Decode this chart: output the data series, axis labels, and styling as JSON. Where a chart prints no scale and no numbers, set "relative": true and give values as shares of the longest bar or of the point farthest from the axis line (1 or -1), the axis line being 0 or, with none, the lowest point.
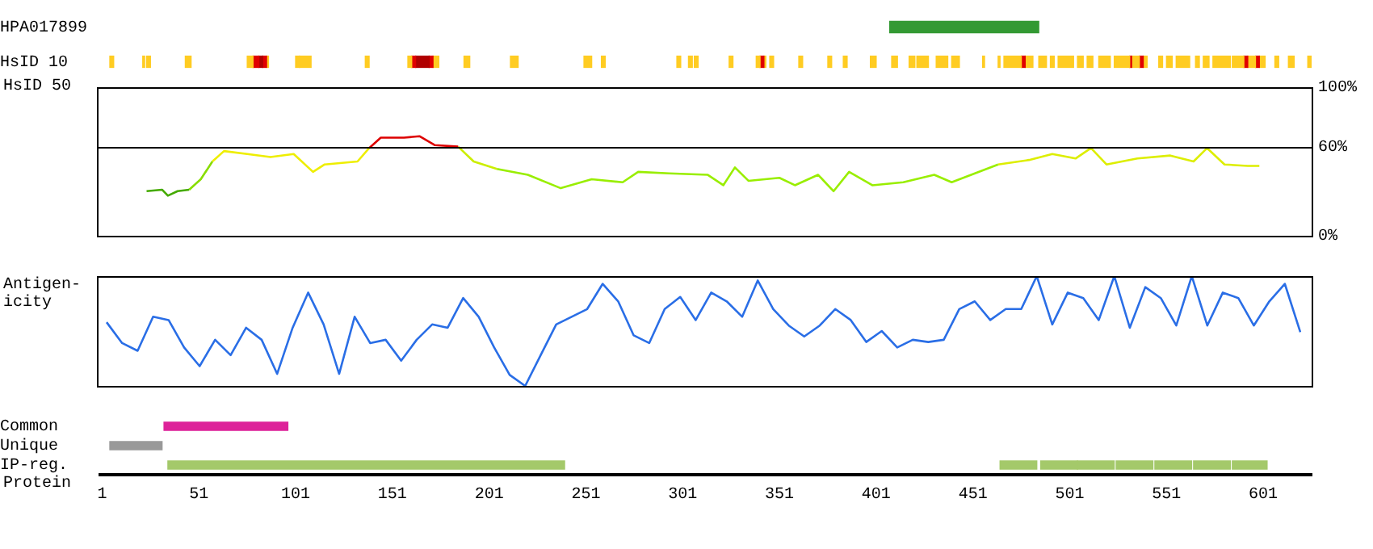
{
  "chart_data": [
    {
      "type": "bar",
      "orientation": "horizontal",
      "categories": [
        "HPA017899",
        "HsID 10"
      ],
      "xlim": [
        0,
        626
      ],
      "tick_labels": "y",
      "series": [
        {
          "color": "#339933",
          "base": [
            408,
            null
          ],
          "values": [
            77,
            null
          ]
        },
        {
          "color": "#ffcc22",
          "base": [
            null,
            5
          ],
          "values": [
            null,
            2
          ]
        },
        {
          "color": "#ffcc22",
          "base": [
            null,
            22
          ],
          "values": [
            null,
            1
          ]
        },
        {
          "color": "#ffcc22",
          "base": [
            null,
            24
          ],
          "values": [
            null,
            2
          ]
        },
        {
          "color": "#ffcc22",
          "base": [
            null,
            44
          ],
          "values": [
            null,
            3
          ]
        },
        {
          "color": "#ffcc22",
          "base": [
            null,
            76
          ],
          "values": [
            null,
            3
          ]
        },
        {
          "color": "#e00000",
          "base": [
            null,
            79
          ],
          "values": [
            null,
            3
          ]
        },
        {
          "color": "#b00000",
          "base": [
            null,
            82
          ],
          "values": [
            null,
            2
          ]
        },
        {
          "color": "#e00000",
          "base": [
            null,
            84
          ],
          "values": [
            null,
            2
          ]
        },
        {
          "color": "#ffcc22",
          "base": [
            null,
            86
          ],
          "values": [
            null,
            1
          ]
        },
        {
          "color": "#ffcc22",
          "base": [
            null,
            101
          ],
          "values": [
            null,
            2
          ]
        },
        {
          "color": "#ffcc22",
          "base": [
            null,
            103
          ],
          "values": [
            null,
            6
          ]
        },
        {
          "color": "#ffcc22",
          "base": [
            null,
            137
          ],
          "values": [
            null,
            2
          ]
        },
        {
          "color": "#ffcc22",
          "base": [
            null,
            159
          ],
          "values": [
            null,
            2
          ]
        },
        {
          "color": "#e00000",
          "base": [
            null,
            161
          ],
          "values": [
            null,
            2
          ]
        },
        {
          "color": "#b00000",
          "base": [
            null,
            163
          ],
          "values": [
            null,
            7
          ]
        },
        {
          "color": "#e00000",
          "base": [
            null,
            170
          ],
          "values": [
            null,
            2
          ]
        },
        {
          "color": "#ffcc22",
          "base": [
            null,
            172
          ],
          "values": [
            null,
            3
          ]
        },
        {
          "color": "#ffcc22",
          "base": [
            null,
            188
          ],
          "values": [
            null,
            3
          ]
        },
        {
          "color": "#ffcc22",
          "base": [
            null,
            212
          ],
          "values": [
            null,
            4
          ]
        },
        {
          "color": "#ffcc22",
          "base": [
            null,
            250
          ],
          "values": [
            null,
            4
          ]
        },
        {
          "color": "#ffcc22",
          "base": [
            null,
            259
          ],
          "values": [
            null,
            2
          ]
        },
        {
          "color": "#ffcc22",
          "base": [
            null,
            298
          ],
          "values": [
            null,
            2
          ]
        },
        {
          "color": "#ffcc22",
          "base": [
            null,
            304
          ],
          "values": [
            null,
            2
          ]
        },
        {
          "color": "#ffcc22",
          "base": [
            null,
            307
          ],
          "values": [
            null,
            2
          ]
        },
        {
          "color": "#ffcc22",
          "base": [
            null,
            325
          ],
          "values": [
            null,
            2
          ]
        },
        {
          "color": "#ffcc22",
          "base": [
            null,
            339
          ],
          "values": [
            null,
            2
          ]
        },
        {
          "color": "#e00000",
          "base": [
            null,
            341
          ],
          "values": [
            null,
            2
          ]
        },
        {
          "color": "#ffcc22",
          "base": [
            null,
            343
          ],
          "values": [
            null,
            1
          ]
        },
        {
          "color": "#ffcc22",
          "base": [
            null,
            346
          ],
          "values": [
            null,
            2
          ]
        },
        {
          "color": "#ffcc22",
          "base": [
            null,
            361
          ],
          "values": [
            null,
            2
          ]
        },
        {
          "color": "#ffcc22",
          "base": [
            null,
            376
          ],
          "values": [
            null,
            2
          ]
        },
        {
          "color": "#ffcc22",
          "base": [
            null,
            384
          ],
          "values": [
            null,
            2
          ]
        },
        {
          "color": "#ffcc22",
          "base": [
            null,
            398
          ],
          "values": [
            null,
            3
          ]
        },
        {
          "color": "#ffcc22",
          "base": [
            null,
            409
          ],
          "values": [
            null,
            3
          ]
        },
        {
          "color": "#ffcc22",
          "base": [
            null,
            418
          ],
          "values": [
            null,
            3
          ]
        },
        {
          "color": "#ffcc22",
          "base": [
            null,
            422
          ],
          "values": [
            null,
            6
          ]
        },
        {
          "color": "#ffcc22",
          "base": [
            null,
            432
          ],
          "values": [
            null,
            6
          ]
        },
        {
          "color": "#ffcc22",
          "base": [
            null,
            440
          ],
          "values": [
            null,
            4
          ]
        },
        {
          "color": "#ffcc22",
          "base": [
            null,
            456
          ],
          "values": [
            null,
            1
          ]
        },
        {
          "color": "#ffcc22",
          "base": [
            null,
            464
          ],
          "values": [
            null,
            1
          ]
        },
        {
          "color": "#ffcc22",
          "base": [
            null,
            467
          ],
          "values": [
            null,
            9
          ]
        },
        {
          "color": "#e00000",
          "base": [
            null,
            476
          ],
          "values": [
            null,
            2
          ]
        },
        {
          "color": "#ffcc22",
          "base": [
            null,
            478
          ],
          "values": [
            null,
            4
          ]
        },
        {
          "color": "#ffcc22",
          "base": [
            null,
            485
          ],
          "values": [
            null,
            4
          ]
        },
        {
          "color": "#ffcc22",
          "base": [
            null,
            491
          ],
          "values": [
            null,
            2
          ]
        },
        {
          "color": "#ffcc22",
          "base": [
            null,
            495
          ],
          "values": [
            null,
            8
          ]
        },
        {
          "color": "#ffcc22",
          "base": [
            null,
            505
          ],
          "values": [
            null,
            3
          ]
        },
        {
          "color": "#ffcc22",
          "base": [
            null,
            510
          ],
          "values": [
            null,
            3
          ]
        },
        {
          "color": "#ffcc22",
          "base": [
            null,
            516
          ],
          "values": [
            null,
            6
          ]
        },
        {
          "color": "#ffcc22",
          "base": [
            null,
            524
          ],
          "values": [
            null,
            8
          ]
        },
        {
          "color": "#e00000",
          "base": [
            null,
            532
          ],
          "values": [
            null,
            1
          ]
        },
        {
          "color": "#ffcc22",
          "base": [
            null,
            533
          ],
          "values": [
            null,
            4
          ]
        },
        {
          "color": "#e00000",
          "base": [
            null,
            537
          ],
          "values": [
            null,
            2
          ]
        },
        {
          "color": "#ffcc22",
          "base": [
            null,
            539
          ],
          "values": [
            null,
            2
          ]
        },
        {
          "color": "#ffcc22",
          "base": [
            null,
            547
          ],
          "values": [
            null,
            2
          ]
        },
        {
          "color": "#ffcc22",
          "base": [
            null,
            551
          ],
          "values": [
            null,
            3
          ]
        },
        {
          "color": "#ffcc22",
          "base": [
            null,
            556
          ],
          "values": [
            null,
            7
          ]
        },
        {
          "color": "#ffcc22",
          "base": [
            null,
            566
          ],
          "values": [
            null,
            2
          ]
        },
        {
          "color": "#ffcc22",
          "base": [
            null,
            570
          ],
          "values": [
            null,
            3
          ]
        },
        {
          "color": "#ffcc22",
          "base": [
            null,
            575
          ],
          "values": [
            null,
            9
          ]
        },
        {
          "color": "#ffcc22",
          "base": [
            null,
            585
          ],
          "values": [
            null,
            6
          ]
        },
        {
          "color": "#e00000",
          "base": [
            null,
            591
          ],
          "values": [
            null,
            2
          ]
        },
        {
          "color": "#ffcc22",
          "base": [
            null,
            593
          ],
          "values": [
            null,
            4
          ]
        },
        {
          "color": "#e00000",
          "base": [
            null,
            597
          ],
          "values": [
            null,
            2
          ]
        },
        {
          "color": "#ffcc22",
          "base": [
            null,
            599
          ],
          "values": [
            null,
            3
          ]
        },
        {
          "color": "#ffcc22",
          "base": [
            null,
            607
          ],
          "values": [
            null,
            2
          ]
        },
        {
          "color": "#ffcc22",
          "base": [
            null,
            614
          ],
          "values": [
            null,
            3
          ]
        },
        {
          "color": "#ffcc22",
          "base": [
            null,
            624
          ],
          "values": [
            null,
            2
          ]
        }
      ]
    },
    {
      "type": "line",
      "ylabel": "HsID 50",
      "xlim": [
        0,
        626
      ],
      "ylim": [
        0,
        100
      ],
      "yticks": [
        {
          "value": 0,
          "label": "0%"
        },
        {
          "value": 60,
          "label": "60%"
        },
        {
          "value": 100,
          "label": "100%"
        }
      ],
      "tick_labels": "y",
      "ref_lines": [
        {
          "axis": "y",
          "value": 60,
          "color": "#000000"
        }
      ],
      "series": [
        {
          "color": "#44aa00",
          "x": [
            24,
            32,
            35,
            40,
            46
          ],
          "values": [
            30,
            31,
            27,
            30,
            31
          ]
        },
        {
          "color": "#88dd00",
          "x": [
            46,
            52,
            58
          ],
          "values": [
            31,
            38,
            50
          ]
        },
        {
          "color": "#eeee00",
          "x": [
            58,
            64,
            76,
            88,
            100,
            110,
            116,
            133,
            139
          ],
          "values": [
            50,
            57,
            55,
            53,
            55,
            43,
            48,
            50,
            59
          ]
        },
        {
          "color": "#dd0000",
          "x": [
            139,
            145,
            157,
            165,
            173,
            185
          ],
          "values": [
            59,
            66,
            66,
            67,
            61,
            60
          ]
        },
        {
          "color": "#ccee00",
          "x": [
            185,
            193,
            205
          ],
          "values": [
            60,
            50,
            45
          ]
        },
        {
          "color": "#99ee00",
          "x": [
            205,
            221,
            238,
            254,
            270,
            278,
            294,
            314,
            322,
            328,
            335,
            351,
            359,
            371,
            379,
            387,
            399,
            415,
            431,
            440,
            452,
            464
          ],
          "values": [
            45,
            41,
            32,
            38,
            36,
            43,
            42,
            41,
            34,
            46,
            37,
            39,
            34,
            41,
            30,
            43,
            34,
            36,
            41,
            36,
            42,
            48
          ]
        },
        {
          "color": "#ddee00",
          "x": [
            464,
            480,
            492,
            504,
            512,
            520,
            536,
            553,
            565,
            572,
            581,
            593,
            599
          ],
          "values": [
            48,
            51,
            55,
            52,
            59,
            48,
            52,
            54,
            50,
            59,
            48,
            47,
            47
          ]
        }
      ]
    },
    {
      "type": "line",
      "ylabel": "Antigen-\nicity",
      "relative": true,
      "tick_labels": false,
      "categories": [
        null,
        null,
        null,
        null,
        null,
        null,
        null,
        null,
        null,
        null,
        null,
        null,
        null,
        null,
        null,
        null,
        null,
        null,
        null,
        null,
        null,
        null,
        null,
        null,
        null,
        null,
        null,
        null,
        null,
        null,
        null,
        null,
        null,
        null,
        null,
        null,
        null,
        null,
        null,
        null,
        null,
        null,
        null,
        null,
        null,
        null,
        null,
        null,
        null,
        null,
        null,
        null,
        null,
        null,
        null,
        null,
        null,
        null,
        null,
        null,
        null,
        null,
        null,
        null,
        null,
        null,
        null,
        null,
        null,
        null,
        null,
        null,
        null,
        null,
        null,
        null,
        null,
        null
      ],
      "series": [
        {
          "color": "#2a6ee6",
          "values": [
            0.58,
            0.39,
            0.32,
            0.63,
            0.6,
            0.35,
            0.18,
            0.42,
            0.28,
            0.53,
            0.42,
            0.11,
            0.53,
            0.85,
            0.56,
            0.11,
            0.63,
            0.39,
            0.42,
            0.23,
            0.42,
            0.56,
            0.53,
            0.8,
            0.63,
            0.35,
            0.1,
            0.0,
            0.28,
            0.56,
            0.63,
            0.7,
            0.93,
            0.77,
            0.46,
            0.39,
            0.7,
            0.81,
            0.6,
            0.85,
            0.77,
            0.63,
            0.96,
            0.7,
            0.55,
            0.45,
            0.55,
            0.7,
            0.6,
            0.4,
            0.5,
            0.35,
            0.42,
            0.4,
            0.42,
            0.7,
            0.77,
            0.6,
            0.7,
            0.7,
            1.0,
            0.56,
            0.85,
            0.8,
            0.6,
            1.0,
            0.53,
            0.9,
            0.8,
            0.55,
            1.0,
            0.55,
            0.85,
            0.8,
            0.55,
            0.77,
            0.93,
            0.49
          ]
        }
      ]
    },
    {
      "type": "bar",
      "orientation": "horizontal",
      "categories": [
        "Common",
        "Unique",
        "IP-reg."
      ],
      "xlabel": "Protein",
      "xlim": [
        0,
        626
      ],
      "xticks": [
        1,
        51,
        101,
        151,
        201,
        251,
        301,
        351,
        401,
        451,
        501,
        551,
        601
      ],
      "series": [
        {
          "color": "#dd2299",
          "base": [
            33,
            null,
            null
          ],
          "values": [
            64,
            null,
            null
          ]
        },
        {
          "color": "#999999",
          "base": [
            null,
            5,
            null
          ],
          "values": [
            null,
            27,
            null
          ]
        },
        {
          "color": "#a4c96a",
          "base": [
            null,
            null,
            35
          ],
          "values": [
            null,
            null,
            205
          ]
        },
        {
          "color": "#a4c96a",
          "base": [
            null,
            null,
            465
          ],
          "values": [
            null,
            null,
            19
          ]
        },
        {
          "color": "#a4c96a",
          "base": [
            null,
            null,
            486
          ],
          "values": [
            null,
            null,
            19
          ]
        },
        {
          "color": "#a4c96a",
          "base": [
            null,
            null,
            505
          ],
          "values": [
            null,
            null,
            19
          ]
        },
        {
          "color": "#a4c96a",
          "base": [
            null,
            null,
            525
          ],
          "values": [
            null,
            null,
            19
          ]
        },
        {
          "color": "#a4c96a",
          "base": [
            null,
            null,
            545
          ],
          "values": [
            null,
            null,
            19
          ]
        },
        {
          "color": "#a4c96a",
          "base": [
            null,
            null,
            565
          ],
          "values": [
            null,
            null,
            19
          ]
        },
        {
          "color": "#a4c96a",
          "base": [
            null,
            null,
            585
          ],
          "values": [
            null,
            null,
            18
          ]
        }
      ]
    }
  ]
}
